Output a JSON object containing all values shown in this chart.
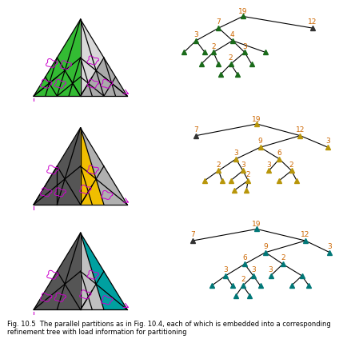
{
  "fig_caption": "Fig. 10.5  The parallel partitions as in Fig. 10.4, each of which is embedded into a corresponding\nrefinement tree with load information for partitioning",
  "caption_fontsize": 6.0,
  "orange": "#cc6600",
  "green_node": "#1a6b1a",
  "yellow_node": "#b8960a",
  "teal_node": "#007777",
  "tri_green": "#33bb33",
  "tri_gray_light": "#cccccc",
  "tri_gray_dark": "#555555",
  "tri_gray_mid": "#888888",
  "tri_yellow": "#f0be00",
  "tri_teal": "#00a0a0",
  "tri_white": "#e8e8e8",
  "magenta": "#cc00cc"
}
